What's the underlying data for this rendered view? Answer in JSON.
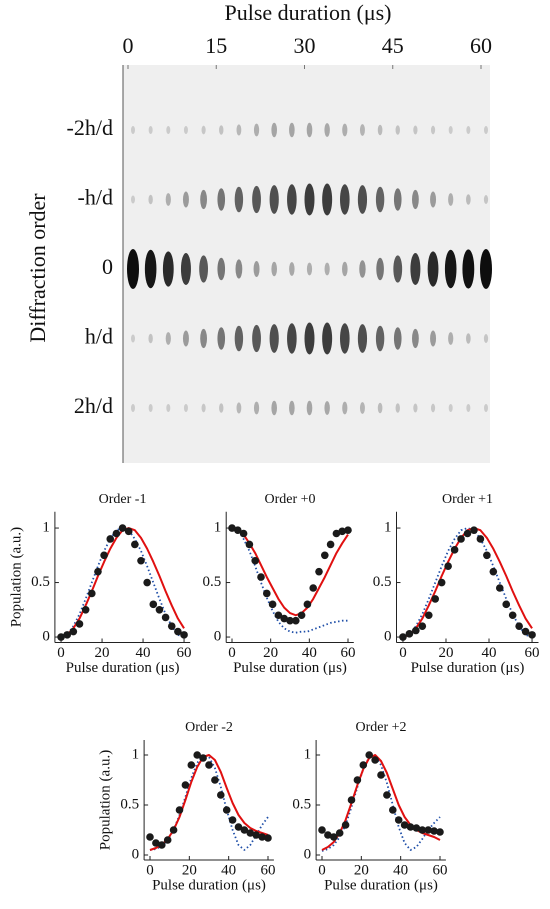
{
  "chart_data": [
    {
      "type": "image",
      "xlabel": "Pulse duration (μs)",
      "ylabel": "Diffraction order",
      "x": [
        0,
        3,
        6,
        9,
        12,
        15,
        18,
        21,
        24,
        27,
        30,
        33,
        36,
        39,
        42,
        45,
        48,
        51,
        54,
        57,
        60
      ],
      "xlim": [
        0,
        60
      ],
      "xticks": [
        0,
        15,
        30,
        45,
        60
      ],
      "rows": [
        "-2h/d",
        "-h/d",
        "0",
        "h/d",
        "2h/d"
      ],
      "intensity": [
        [
          0,
          0,
          0,
          0,
          0.02,
          0.05,
          0.1,
          0.15,
          0.2,
          0.2,
          0.2,
          0.18,
          0.15,
          0.12,
          0.08,
          0.05,
          0.03,
          0.02,
          0,
          0,
          0
        ],
        [
          0,
          0.05,
          0.15,
          0.25,
          0.35,
          0.45,
          0.55,
          0.6,
          0.65,
          0.7,
          0.75,
          0.75,
          0.7,
          0.65,
          0.55,
          0.45,
          0.35,
          0.25,
          0.15,
          0.08,
          0.03
        ],
        [
          1,
          0.95,
          0.85,
          0.75,
          0.6,
          0.45,
          0.35,
          0.25,
          0.2,
          0.18,
          0.15,
          0.15,
          0.2,
          0.3,
          0.45,
          0.6,
          0.75,
          0.85,
          0.95,
          0.98,
          1
        ],
        [
          0,
          0.05,
          0.15,
          0.25,
          0.35,
          0.45,
          0.55,
          0.6,
          0.65,
          0.7,
          0.75,
          0.75,
          0.7,
          0.65,
          0.55,
          0.45,
          0.35,
          0.25,
          0.15,
          0.08,
          0.03
        ],
        [
          0,
          0,
          0,
          0,
          0.02,
          0.05,
          0.1,
          0.15,
          0.2,
          0.2,
          0.2,
          0.18,
          0.15,
          0.12,
          0.08,
          0.05,
          0.03,
          0.02,
          0,
          0,
          0
        ]
      ]
    },
    {
      "type": "fit",
      "title": "Order -1",
      "xlabel": "Pulse duration (μs)",
      "ylabel": "Population (a.u.)",
      "x": [
        0,
        3,
        6,
        9,
        12,
        15,
        18,
        21,
        24,
        27,
        30,
        33,
        36,
        39,
        42,
        45,
        48,
        51,
        54,
        57,
        60
      ],
      "xlim": [
        -3,
        63
      ],
      "xticks": [
        0,
        20,
        40,
        60
      ],
      "ylim": [
        -0.05,
        1.15
      ],
      "yticks": [
        0,
        0.5,
        1
      ],
      "series": [
        {
          "style": "dotted",
          "color": "#1f4fa8",
          "values": [
            0,
            0.02,
            0.1,
            0.21,
            0.35,
            0.5,
            0.65,
            0.79,
            0.9,
            0.98,
            1.0,
            0.98,
            0.9,
            0.79,
            0.65,
            0.5,
            0.35,
            0.21,
            0.1,
            0.02,
            0
          ]
        },
        {
          "style": "solid",
          "color": "#e01010",
          "values": [
            0,
            0.02,
            0.08,
            0.17,
            0.29,
            0.42,
            0.56,
            0.69,
            0.81,
            0.91,
            0.98,
            1.0,
            0.98,
            0.91,
            0.81,
            0.69,
            0.56,
            0.42,
            0.29,
            0.17,
            0.08
          ]
        },
        {
          "style": "markers",
          "color": "#1a1a1a",
          "values": [
            0,
            0.02,
            0.05,
            0.12,
            0.25,
            0.4,
            0.6,
            0.75,
            0.9,
            0.95,
            1.0,
            0.97,
            0.85,
            0.7,
            0.5,
            0.3,
            0.25,
            0.18,
            0.1,
            0.05,
            0.02
          ]
        }
      ]
    },
    {
      "type": "fit",
      "title": "Order +0",
      "xlabel": "Pulse duration (μs)",
      "x": [
        0,
        3,
        6,
        9,
        12,
        15,
        18,
        21,
        24,
        27,
        30,
        33,
        36,
        39,
        42,
        45,
        48,
        51,
        54,
        57,
        60
      ],
      "xlim": [
        -3,
        63
      ],
      "xticks": [
        0,
        20,
        40,
        60
      ],
      "ylim": [
        -0.05,
        1.15
      ],
      "yticks": [
        0,
        0.5,
        1
      ],
      "series": [
        {
          "style": "dotted",
          "color": "#1f4fa8",
          "values": [
            1,
            0.98,
            0.9,
            0.79,
            0.65,
            0.5,
            0.36,
            0.24,
            0.14,
            0.08,
            0.05,
            0.04,
            0.05,
            0.05,
            0.07,
            0.09,
            0.11,
            0.13,
            0.14,
            0.15,
            0.15
          ]
        },
        {
          "style": "solid",
          "color": "#e01010",
          "values": [
            1,
            0.98,
            0.94,
            0.86,
            0.77,
            0.66,
            0.55,
            0.45,
            0.35,
            0.27,
            0.22,
            0.2,
            0.22,
            0.27,
            0.35,
            0.45,
            0.55,
            0.66,
            0.77,
            0.86,
            0.94
          ]
        },
        {
          "style": "markers",
          "color": "#1a1a1a",
          "values": [
            1,
            0.98,
            0.95,
            0.85,
            0.7,
            0.55,
            0.4,
            0.3,
            0.2,
            0.17,
            0.15,
            0.15,
            0.2,
            0.3,
            0.45,
            0.6,
            0.75,
            0.85,
            0.95,
            0.97,
            0.98
          ]
        }
      ]
    },
    {
      "type": "fit",
      "title": "Order +1",
      "xlabel": "Pulse duration (μs)",
      "x": [
        0,
        3,
        6,
        9,
        12,
        15,
        18,
        21,
        24,
        27,
        30,
        33,
        36,
        39,
        42,
        45,
        48,
        51,
        54,
        57,
        60
      ],
      "xlim": [
        -3,
        63
      ],
      "xticks": [
        0,
        20,
        40,
        60
      ],
      "ylim": [
        -0.05,
        1.15
      ],
      "yticks": [
        0,
        0.5,
        1
      ],
      "series": [
        {
          "style": "dotted",
          "color": "#1f4fa8",
          "values": [
            0,
            0.02,
            0.1,
            0.21,
            0.35,
            0.5,
            0.65,
            0.79,
            0.9,
            0.98,
            1.0,
            0.98,
            0.9,
            0.79,
            0.65,
            0.5,
            0.35,
            0.21,
            0.1,
            0.02,
            0
          ]
        },
        {
          "style": "solid",
          "color": "#e01010",
          "values": [
            0,
            0.02,
            0.08,
            0.17,
            0.29,
            0.42,
            0.56,
            0.69,
            0.81,
            0.91,
            0.98,
            1.0,
            0.98,
            0.91,
            0.81,
            0.69,
            0.56,
            0.42,
            0.29,
            0.17,
            0.08
          ]
        },
        {
          "style": "markers",
          "color": "#1a1a1a",
          "values": [
            0,
            0.03,
            0.06,
            0.1,
            0.2,
            0.35,
            0.5,
            0.65,
            0.8,
            0.9,
            0.95,
            0.98,
            0.9,
            0.75,
            0.6,
            0.45,
            0.3,
            0.2,
            0.1,
            0.05,
            0.02
          ]
        }
      ]
    },
    {
      "type": "fit",
      "title": "Order -2",
      "xlabel": "Pulse duration (μs)",
      "ylabel": "Population (a.u.)",
      "x": [
        0,
        3,
        6,
        9,
        12,
        15,
        18,
        21,
        24,
        27,
        30,
        33,
        36,
        39,
        42,
        45,
        48,
        51,
        54,
        57,
        60
      ],
      "xlim": [
        -3,
        63
      ],
      "xticks": [
        0,
        20,
        40,
        60
      ],
      "ylim": [
        -0.05,
        1.15
      ],
      "yticks": [
        0,
        0.5,
        1
      ],
      "series": [
        {
          "style": "dotted",
          "color": "#1f4fa8",
          "values": [
            0.05,
            0.06,
            0.09,
            0.15,
            0.25,
            0.4,
            0.58,
            0.77,
            0.92,
            1.0,
            0.98,
            0.87,
            0.68,
            0.45,
            0.25,
            0.1,
            0.05,
            0.1,
            0.2,
            0.3,
            0.38
          ]
        },
        {
          "style": "solid",
          "color": "#e01010",
          "values": [
            0.05,
            0.07,
            0.1,
            0.16,
            0.25,
            0.38,
            0.55,
            0.73,
            0.88,
            0.98,
            1.0,
            0.95,
            0.83,
            0.67,
            0.52,
            0.4,
            0.32,
            0.27,
            0.24,
            0.22,
            0.2
          ]
        },
        {
          "style": "markers",
          "color": "#1a1a1a",
          "values": [
            0.18,
            0.12,
            0.1,
            0.15,
            0.25,
            0.45,
            0.7,
            0.9,
            1.0,
            0.97,
            0.9,
            0.75,
            0.6,
            0.45,
            0.35,
            0.28,
            0.25,
            0.22,
            0.2,
            0.18,
            0.17
          ]
        }
      ]
    },
    {
      "type": "fit",
      "title": "Order +2",
      "xlabel": "Pulse duration (μs)",
      "x": [
        0,
        3,
        6,
        9,
        12,
        15,
        18,
        21,
        24,
        27,
        30,
        33,
        36,
        39,
        42,
        45,
        48,
        51,
        54,
        57,
        60
      ],
      "xlim": [
        -3,
        63
      ],
      "xticks": [
        0,
        20,
        40,
        60
      ],
      "ylim": [
        -0.05,
        1.15
      ],
      "yticks": [
        0,
        0.5,
        1
      ],
      "series": [
        {
          "style": "dotted",
          "color": "#1f4fa8",
          "values": [
            0.04,
            0.06,
            0.1,
            0.18,
            0.3,
            0.48,
            0.68,
            0.86,
            0.98,
            0.99,
            0.9,
            0.72,
            0.5,
            0.28,
            0.12,
            0.05,
            0.08,
            0.16,
            0.25,
            0.32,
            0.38
          ]
        },
        {
          "style": "solid",
          "color": "#e01010",
          "values": [
            0.05,
            0.08,
            0.13,
            0.22,
            0.35,
            0.52,
            0.7,
            0.86,
            0.97,
            1.0,
            0.94,
            0.82,
            0.66,
            0.5,
            0.38,
            0.3,
            0.25,
            0.22,
            0.2,
            0.18,
            0.15
          ]
        },
        {
          "style": "markers",
          "color": "#1a1a1a",
          "values": [
            0.25,
            0.2,
            0.18,
            0.22,
            0.3,
            0.55,
            0.75,
            0.9,
            1.0,
            0.95,
            0.8,
            0.6,
            0.45,
            0.35,
            0.3,
            0.28,
            0.27,
            0.25,
            0.25,
            0.24,
            0.23
          ]
        }
      ]
    }
  ]
}
